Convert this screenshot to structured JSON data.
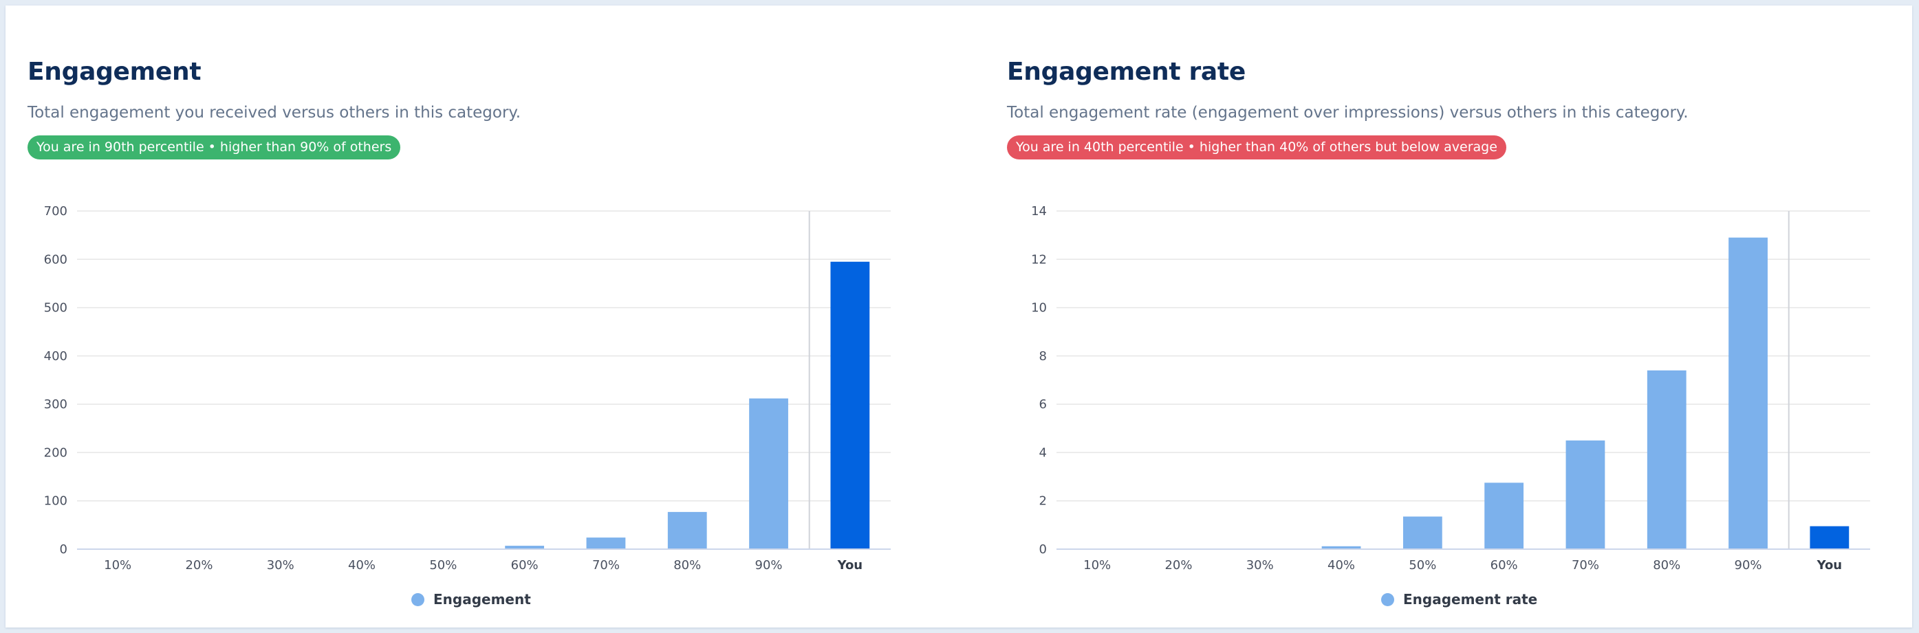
{
  "panels": [
    {
      "title": "Engagement",
      "subtitle": "Total engagement you received versus others in this category.",
      "badge": {
        "text": "You are in 90th percentile • higher than 90% of others",
        "color": "#3cb46e"
      },
      "legend_label": "Engagement",
      "chart_data": {
        "type": "bar",
        "categories": [
          "10%",
          "20%",
          "30%",
          "40%",
          "50%",
          "60%",
          "70%",
          "80%",
          "90%",
          "You"
        ],
        "series": [
          {
            "name": "Engagement",
            "values": [
              0,
              0,
              0,
              0,
              1,
              7,
              24,
              77,
              312,
              595
            ]
          }
        ],
        "ylim": [
          0,
          700
        ],
        "yticks": [
          0,
          100,
          200,
          300,
          400,
          500,
          600,
          700
        ],
        "grid": true,
        "legend_position": "bottom",
        "highlight_category": "You",
        "colors": {
          "bar": "#7cb1ec",
          "highlight": "#0263e0"
        }
      }
    },
    {
      "title": "Engagement rate",
      "subtitle": "Total engagement rate (engagement over impressions) versus others in this category.",
      "badge": {
        "text": "You are in 40th percentile • higher than 40% of others but below average",
        "color": "#e5535f"
      },
      "legend_label": "Engagement rate",
      "chart_data": {
        "type": "bar",
        "categories": [
          "10%",
          "20%",
          "30%",
          "40%",
          "50%",
          "60%",
          "70%",
          "80%",
          "90%",
          "You"
        ],
        "series": [
          {
            "name": "Engagement rate",
            "values": [
              0,
              0,
              0,
              0.12,
              1.35,
              2.75,
              4.5,
              7.4,
              12.9,
              0.95
            ]
          }
        ],
        "ylim": [
          0,
          14
        ],
        "yticks": [
          0,
          2,
          4,
          6,
          8,
          10,
          12,
          14
        ],
        "grid": true,
        "legend_position": "bottom",
        "highlight_category": "You",
        "colors": {
          "bar": "#7cb1ec",
          "highlight": "#0263e0"
        }
      }
    }
  ]
}
